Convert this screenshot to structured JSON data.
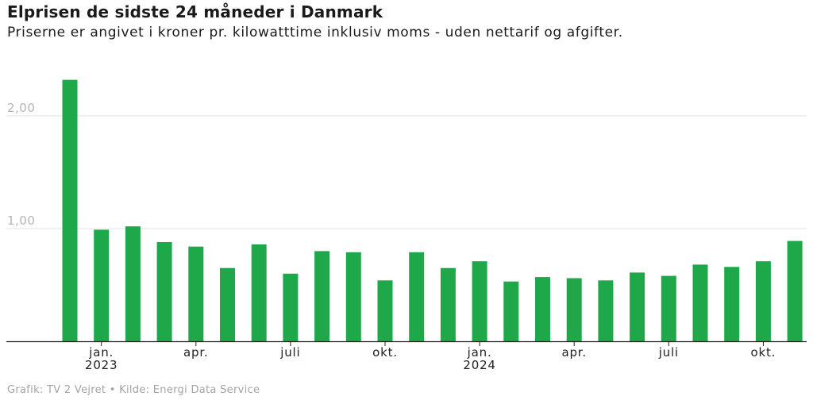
{
  "header": {
    "title": "Elprisen de sidste 24 måneder i Danmark",
    "subtitle": "Priserne er angivet i kroner pr. kilowatttime inklusiv moms - uden nettarif og afgifter."
  },
  "footer": {
    "source": "Grafik: TV 2 Vejret • Kilde: Energi Data Service"
  },
  "colors": {
    "bar": "#1fa84a",
    "grid": "#e2e2e2",
    "axis": "#222222",
    "tick_text": "#222222",
    "y_tick_text": "#b5b5b5"
  },
  "chart_data": {
    "type": "bar",
    "categories": [
      "dec. 2022",
      "jan. 2023",
      "feb. 2023",
      "mar. 2023",
      "apr. 2023",
      "maj 2023",
      "jun. 2023",
      "juli 2023",
      "aug. 2023",
      "sep. 2023",
      "okt. 2023",
      "nov. 2023",
      "dec. 2023",
      "jan. 2024",
      "feb. 2024",
      "mar. 2024",
      "apr. 2024",
      "maj 2024",
      "jun. 2024",
      "juli 2024",
      "aug. 2024",
      "sep. 2024",
      "okt. 2024",
      "nov. 2024"
    ],
    "values": [
      2.32,
      0.99,
      1.02,
      0.88,
      0.84,
      0.65,
      0.86,
      0.6,
      0.8,
      0.79,
      0.54,
      0.79,
      0.65,
      0.71,
      0.53,
      0.57,
      0.56,
      0.54,
      0.61,
      0.58,
      0.68,
      0.66,
      0.71,
      0.89
    ],
    "x_tick_labels": [
      {
        "index": 1,
        "line1": "jan.",
        "line2": "2023"
      },
      {
        "index": 4,
        "line1": "apr.",
        "line2": ""
      },
      {
        "index": 7,
        "line1": "juli",
        "line2": ""
      },
      {
        "index": 10,
        "line1": "okt.",
        "line2": ""
      },
      {
        "index": 13,
        "line1": "jan.",
        "line2": "2024"
      },
      {
        "index": 16,
        "line1": "apr.",
        "line2": ""
      },
      {
        "index": 19,
        "line1": "juli",
        "line2": ""
      },
      {
        "index": 22,
        "line1": "okt.",
        "line2": ""
      }
    ],
    "y_ticks": [
      {
        "value": 1.0,
        "label": "1,00"
      },
      {
        "value": 2.0,
        "label": "2,00"
      }
    ],
    "ylim": [
      0,
      2.4
    ],
    "xlabel": "",
    "ylabel": "",
    "grid": true,
    "legend": "none"
  }
}
